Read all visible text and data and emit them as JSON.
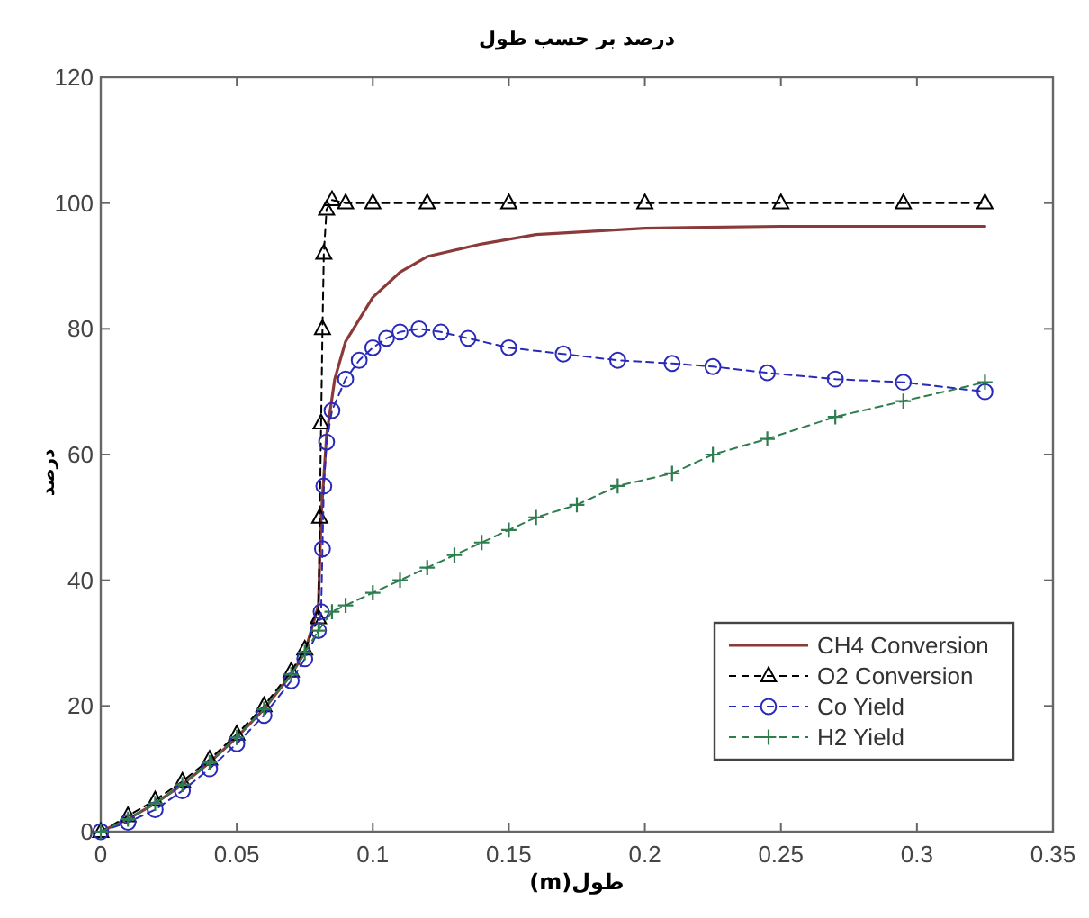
{
  "chart_data": {
    "type": "line",
    "title": "درصد بر حسب طول",
    "xlabel": "طول(m)",
    "ylabel": "درصد",
    "xlim": [
      0,
      0.35
    ],
    "ylim": [
      0,
      120
    ],
    "xticks": [
      0,
      0.05,
      0.1,
      0.15,
      0.2,
      0.25,
      0.3,
      0.35
    ],
    "yticks": [
      0,
      20,
      40,
      60,
      80,
      100,
      120
    ],
    "legend": "bottom right",
    "series": [
      {
        "name": "CH4 Conversion",
        "color": "#8b3a3a",
        "marker": "none",
        "line_style": "solid",
        "x": [
          0,
          0.01,
          0.02,
          0.03,
          0.04,
          0.05,
          0.06,
          0.07,
          0.075,
          0.08,
          0.081,
          0.083,
          0.086,
          0.09,
          0.1,
          0.11,
          0.12,
          0.14,
          0.16,
          0.2,
          0.25,
          0.325
        ],
        "values": [
          0,
          2,
          4.5,
          7.5,
          11,
          15,
          19.5,
          25,
          28.5,
          36,
          50,
          63,
          72,
          78,
          85,
          89,
          91.5,
          93.5,
          95,
          96,
          96.3,
          96.3
        ]
      },
      {
        "name": "O2 Conversion",
        "color": "#000000",
        "marker": "triangle",
        "line_style": "dashed",
        "x": [
          0,
          0.01,
          0.02,
          0.03,
          0.04,
          0.05,
          0.06,
          0.07,
          0.075,
          0.08,
          0.0805,
          0.081,
          0.0815,
          0.082,
          0.083,
          0.085,
          0.09,
          0.1,
          0.12,
          0.15,
          0.2,
          0.25,
          0.295,
          0.325
        ],
        "values": [
          0,
          2.5,
          5,
          8,
          11.5,
          15.5,
          20,
          25.5,
          29,
          34,
          50,
          65,
          80,
          92,
          99,
          100.5,
          100,
          100,
          100,
          100,
          100,
          100,
          100,
          100
        ]
      },
      {
        "name": "Co Yield",
        "color": "#2a2ab8",
        "marker": "circle",
        "line_style": "dashed",
        "x": [
          0,
          0.01,
          0.02,
          0.03,
          0.04,
          0.05,
          0.06,
          0.07,
          0.075,
          0.08,
          0.081,
          0.0815,
          0.082,
          0.083,
          0.085,
          0.09,
          0.095,
          0.1,
          0.105,
          0.11,
          0.117,
          0.125,
          0.135,
          0.15,
          0.17,
          0.19,
          0.21,
          0.225,
          0.245,
          0.27,
          0.295,
          0.325
        ],
        "values": [
          0,
          1.5,
          3.5,
          6.5,
          10,
          14,
          18.5,
          24,
          27.5,
          32,
          35,
          45,
          55,
          62,
          67,
          72,
          75,
          77,
          78.5,
          79.5,
          80,
          79.5,
          78.5,
          77,
          76,
          75,
          74.5,
          74,
          73,
          72,
          71.5,
          70
        ]
      },
      {
        "name": "H2 Yield",
        "color": "#2e7d4f",
        "marker": "cross",
        "line_style": "dashed",
        "x": [
          0,
          0.01,
          0.02,
          0.03,
          0.04,
          0.05,
          0.06,
          0.07,
          0.075,
          0.08,
          0.085,
          0.09,
          0.1,
          0.11,
          0.12,
          0.13,
          0.14,
          0.15,
          0.16,
          0.175,
          0.19,
          0.21,
          0.225,
          0.245,
          0.27,
          0.295,
          0.325
        ],
        "values": [
          0,
          2,
          4.5,
          7.5,
          11,
          15,
          19.5,
          25,
          28.5,
          32,
          35,
          36,
          38,
          40,
          42,
          44,
          46,
          48,
          50,
          52,
          55,
          57,
          60,
          62.5,
          66,
          68.5,
          71.5
        ]
      }
    ]
  }
}
